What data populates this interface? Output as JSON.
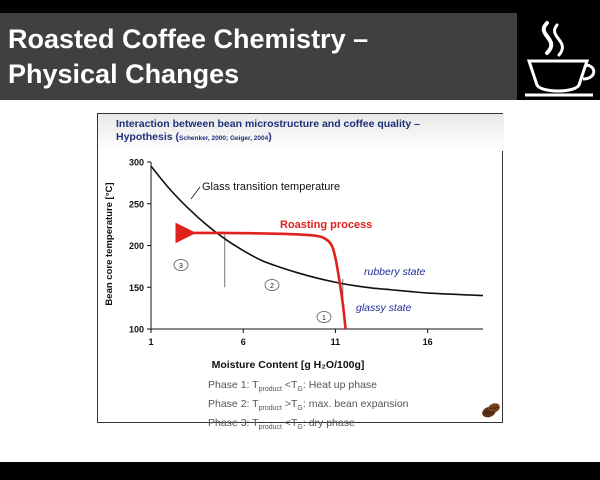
{
  "slide": {
    "title_line1": "Roasted Coffee Chemistry –",
    "title_line2": "Physical Changes",
    "logo_icon": "coffee-cup-logo-icon"
  },
  "figure": {
    "heading_line1": "Interaction between bean microstructure and coffee quality –",
    "heading_line2_prefix": "Hypothesis (",
    "heading_cite": "Schenker, 2000; Geiger, 2004",
    "heading_line2_suffix": ")",
    "phase_lines": [
      {
        "prefix": "Phase 1: T",
        "sub1": "product",
        "mid": " <T",
        "sub2": "G",
        "suffix": ": Heat up phase"
      },
      {
        "prefix": "Phase 2: T",
        "sub1": "product",
        "mid": " >T",
        "sub2": "G",
        "suffix": ": max. bean expansion"
      },
      {
        "prefix": "Phase 3: T",
        "sub1": "product",
        "mid": " <T",
        "sub2": "G",
        "suffix": ": dry phase"
      }
    ],
    "bean_icon": "coffee-bean-icon"
  },
  "chart_data": {
    "type": "line",
    "xlabel": "Moisture Content [g H₂O/100g]",
    "ylabel": "Bean core temperature [°C]",
    "xlim": [
      1,
      19
    ],
    "ylim": [
      100,
      300
    ],
    "x_ticks": [
      "1",
      "6",
      "11",
      "16"
    ],
    "x_tick_values": [
      1,
      6,
      11,
      16
    ],
    "y_ticks": [
      "100",
      "150",
      "200",
      "250",
      "300"
    ],
    "y_tick_values": [
      100,
      150,
      200,
      250,
      300
    ],
    "series": [
      {
        "name": "Glass transition temperature",
        "color": "#111111",
        "x": [
          1,
          2,
          3,
          4,
          5,
          6,
          7,
          8,
          9,
          10,
          11,
          12,
          13,
          14,
          15,
          16,
          17,
          18,
          19
        ],
        "y": [
          295,
          268,
          245,
          225,
          208,
          194,
          182,
          174,
          167,
          161,
          156,
          152,
          149,
          147,
          145,
          143,
          142,
          141,
          140
        ]
      },
      {
        "name": "Roasting process",
        "color": "#e0201c",
        "x": [
          11.55,
          11.4,
          11.2,
          11.0,
          10.8,
          10.45,
          9.8,
          8.0,
          5.0,
          2.6
        ],
        "y": [
          100,
          130,
          160,
          185,
          200,
          208,
          212,
          214,
          215,
          215
        ]
      }
    ],
    "annotations": {
      "glass_label": "Glass transition temperature",
      "roasting_label": "Roasting process",
      "rubbery_label": "rubbery state",
      "glassy_label": "glassy state",
      "phase_markers": [
        "1",
        "2",
        "3"
      ]
    },
    "dividers": [
      {
        "x": 5.0,
        "y_from": 150,
        "y_to": 213
      },
      {
        "x": 11.4,
        "y_from": 130,
        "y_to": 160
      }
    ],
    "grid": false
  }
}
